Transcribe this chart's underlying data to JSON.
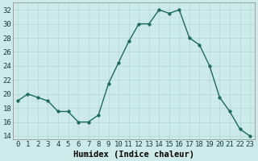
{
  "x": [
    0,
    1,
    2,
    3,
    4,
    5,
    6,
    7,
    8,
    9,
    10,
    11,
    12,
    13,
    14,
    15,
    16,
    17,
    18,
    19,
    20,
    21,
    22,
    23
  ],
  "y": [
    19.0,
    20.0,
    19.5,
    19.0,
    17.5,
    17.5,
    16.0,
    16.0,
    17.0,
    21.5,
    24.5,
    27.5,
    30.0,
    30.0,
    32.0,
    31.5,
    32.0,
    28.0,
    27.0,
    24.0,
    19.5,
    17.5,
    15.0,
    14.0
  ],
  "xlabel": "Humidex (Indice chaleur)",
  "line_color": "#1a6b5a",
  "marker_color": "#1a6b5a",
  "bg_color": "#cceaea",
  "grid_major_color": "#b8d8d8",
  "grid_minor_color": "#c8e4e4",
  "ylim": [
    13.5,
    33.0
  ],
  "xlim": [
    -0.5,
    23.5
  ],
  "yticks": [
    14,
    16,
    18,
    20,
    22,
    24,
    26,
    28,
    30,
    32
  ],
  "xticks": [
    0,
    1,
    2,
    3,
    4,
    5,
    6,
    7,
    8,
    9,
    10,
    11,
    12,
    13,
    14,
    15,
    16,
    17,
    18,
    19,
    20,
    21,
    22,
    23
  ],
  "xlabel_fontsize": 7.5,
  "tick_fontsize": 6.5,
  "linewidth": 1.0,
  "markersize": 2.5
}
